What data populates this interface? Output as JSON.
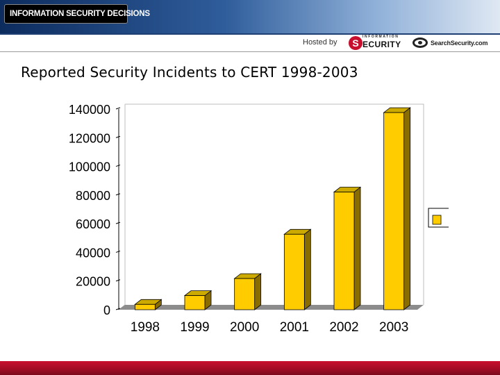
{
  "banner": {
    "logo_text": "INFORMATION SECURITY DECISIONS"
  },
  "hosted": {
    "label": "Hosted by",
    "security_logo_small": "INFORMATION",
    "security_logo_initial": "S",
    "security_logo_word": "ECURITY",
    "searchsecurity_logo": "SearchSecurity.com"
  },
  "colors": {
    "bar_front": "#ffcc00",
    "bar_top": "#ccaa00",
    "bar_side": "#8a6d00",
    "floor": "#8c8c8c"
  },
  "chart_data": {
    "type": "bar",
    "title": "Reported Security Incidents to CERT 1998-2003",
    "categories": [
      "1998",
      "1999",
      "2000",
      "2001",
      "2002",
      "2003"
    ],
    "values": [
      3734,
      9859,
      21756,
      52658,
      82094,
      137529
    ],
    "ylim": [
      0,
      140000
    ],
    "yticks": [
      "0",
      "20000",
      "40000",
      "60000",
      "80000",
      "100000",
      "120000",
      "140000"
    ],
    "xlabel": "",
    "ylabel": "",
    "legend": {
      "placement": "right",
      "entries": [
        ""
      ]
    },
    "grid": false,
    "style": "3d"
  }
}
